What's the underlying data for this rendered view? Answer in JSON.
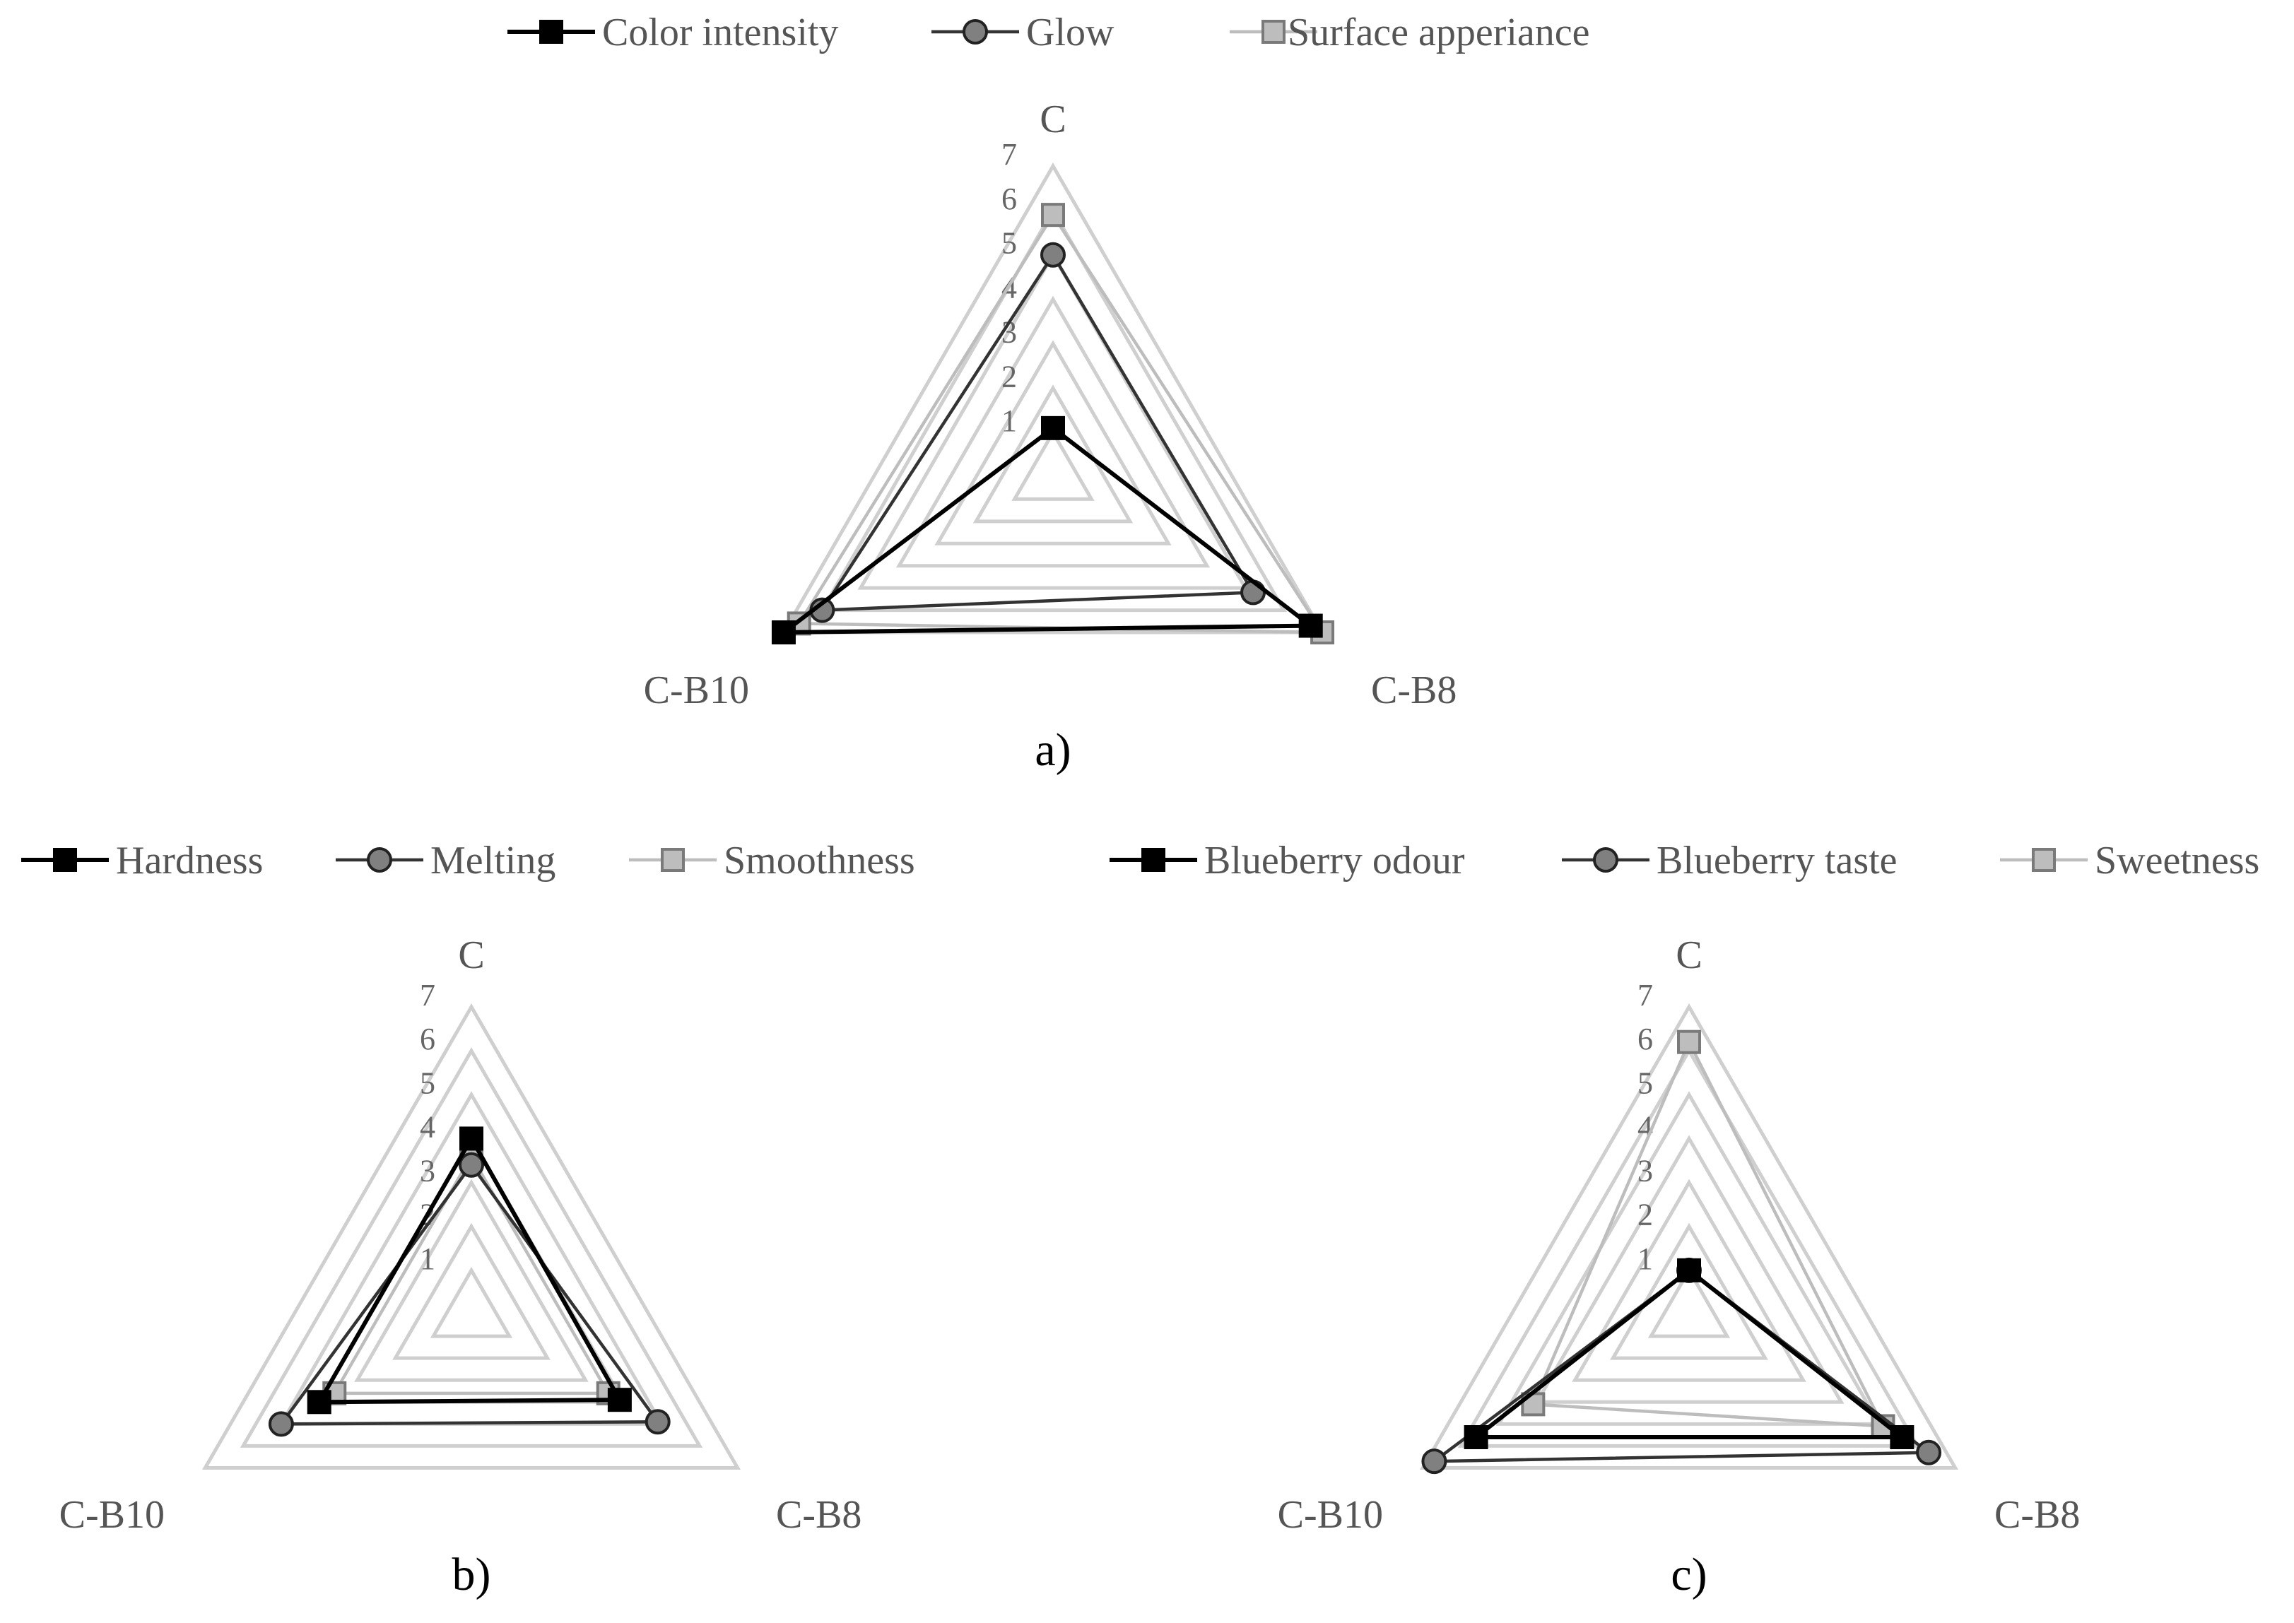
{
  "chart_data": [
    {
      "type": "radar",
      "panel_label": "a)",
      "categories": [
        "C",
        "C-B8",
        "C-B10"
      ],
      "rlim": [
        0,
        7
      ],
      "ticks": [
        "1",
        "2",
        "3",
        "4",
        "5",
        "6",
        "7"
      ],
      "legend": "top",
      "series": [
        {
          "name": "Color intensity",
          "values": [
            1.1,
            6.7,
            7.0
          ],
          "color": "#000000",
          "fill": "#000000",
          "marker": "square"
        },
        {
          "name": "Glow",
          "values": [
            5.0,
            5.2,
            6.0
          ],
          "color": "#333333",
          "fill": "#808080",
          "marker": "circle"
        },
        {
          "name": "Surface apperiance",
          "values": [
            5.9,
            7.0,
            6.6
          ],
          "color": "#bdbdbd",
          "fill": "#bdbdbd",
          "marker": "square"
        }
      ]
    },
    {
      "type": "radar",
      "panel_label": "b)",
      "categories": [
        "C",
        "C-B8",
        "C-B10"
      ],
      "rlim": [
        0,
        7
      ],
      "ticks": [
        "1",
        "2",
        "3",
        "4",
        "5",
        "6",
        "7"
      ],
      "legend": "top",
      "series": [
        {
          "name": "Hardness",
          "values": [
            4.0,
            3.9,
            4.0
          ],
          "color": "#000000",
          "fill": "#000000",
          "marker": "square"
        },
        {
          "name": "Melting",
          "values": [
            3.4,
            4.9,
            5.0
          ],
          "color": "#333333",
          "fill": "#808080",
          "marker": "circle"
        },
        {
          "name": "Smoothness",
          "values": [
            3.6,
            3.6,
            3.6
          ],
          "color": "#bdbdbd",
          "fill": "#bdbdbd",
          "marker": "square"
        }
      ]
    },
    {
      "type": "radar",
      "panel_label": "c)",
      "categories": [
        "C",
        "C-B8",
        "C-B10"
      ],
      "rlim": [
        0,
        7
      ],
      "ticks": [
        "1",
        "2",
        "3",
        "4",
        "5",
        "6",
        "7"
      ],
      "legend": "top",
      "series": [
        {
          "name": "Blueberry odour",
          "values": [
            1.0,
            5.6,
            5.6
          ],
          "color": "#000000",
          "fill": "#000000",
          "marker": "square"
        },
        {
          "name": "Blueberry taste",
          "values": [
            1.0,
            6.3,
            6.7
          ],
          "color": "#333333",
          "fill": "#808080",
          "marker": "circle"
        },
        {
          "name": "Sweetness",
          "values": [
            6.2,
            5.1,
            4.1
          ],
          "color": "#bdbdbd",
          "fill": "#bdbdbd",
          "marker": "square"
        }
      ]
    }
  ]
}
